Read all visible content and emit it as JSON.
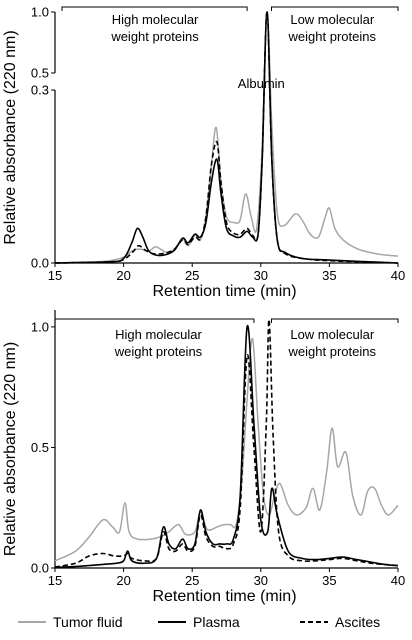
{
  "chart_data": [
    {
      "type": "line",
      "xlabel": "Retention time (min)",
      "ylabel": "Relative absorbance (220 nm)",
      "xlim": [
        15,
        40
      ],
      "xticks": [
        "15",
        "20",
        "25",
        "30",
        "35",
        "40"
      ],
      "y_axis_break": true,
      "ylim_lower": [
        0,
        0.3
      ],
      "ylim_upper": [
        0.5,
        1.0
      ],
      "yticks": [
        "0.0",
        "0.3",
        "0.5",
        "1.0"
      ],
      "annotations": [
        {
          "text_lines": [
            "High molecular",
            "weight proteins"
          ],
          "range": [
            15,
            29
          ]
        },
        {
          "text_lines": [
            "Low molecular",
            "weight proteins"
          ],
          "range": [
            31,
            40
          ]
        },
        {
          "text_lines": [
            "Albumin"
          ],
          "at": 30.4
        }
      ],
      "series": [
        {
          "name": "Tumor fluid",
          "color": "#a6a6a6",
          "dash": "solid",
          "points": [
            [
              15,
              0
            ],
            [
              18,
              0.002
            ],
            [
              19,
              0.004
            ],
            [
              20,
              0.01
            ],
            [
              20.7,
              0.022
            ],
            [
              21.3,
              0.024
            ],
            [
              21.8,
              0.02
            ],
            [
              22.3,
              0.028
            ],
            [
              22.7,
              0.024
            ],
            [
              23.2,
              0.018
            ],
            [
              23.7,
              0.024
            ],
            [
              24.3,
              0.042
            ],
            [
              24.7,
              0.03
            ],
            [
              25.2,
              0.048
            ],
            [
              25.6,
              0.04
            ],
            [
              26,
              0.08
            ],
            [
              26.4,
              0.17
            ],
            [
              26.75,
              0.235
            ],
            [
              27.1,
              0.14
            ],
            [
              27.5,
              0.08
            ],
            [
              28.1,
              0.07
            ],
            [
              28.5,
              0.075
            ],
            [
              28.9,
              0.12
            ],
            [
              29.3,
              0.08
            ],
            [
              29.7,
              0.06
            ],
            [
              30.1,
              0.2
            ],
            [
              30.45,
              1.0
            ],
            [
              30.8,
              0.24
            ],
            [
              31.2,
              0.085
            ],
            [
              31.7,
              0.065
            ],
            [
              32.5,
              0.085
            ],
            [
              33,
              0.075
            ],
            [
              33.6,
              0.05
            ],
            [
              34.2,
              0.045
            ],
            [
              34.7,
              0.08
            ],
            [
              35,
              0.095
            ],
            [
              35.4,
              0.06
            ],
            [
              36,
              0.04
            ],
            [
              37,
              0.025
            ],
            [
              38,
              0.018
            ],
            [
              39,
              0.014
            ],
            [
              40,
              0.012
            ]
          ]
        },
        {
          "name": "Plasma",
          "color": "#000000",
          "dash": "solid",
          "points": [
            [
              15,
              0
            ],
            [
              19,
              0.002
            ],
            [
              20,
              0.008
            ],
            [
              20.6,
              0.035
            ],
            [
              21,
              0.06
            ],
            [
              21.4,
              0.045
            ],
            [
              21.8,
              0.022
            ],
            [
              22.3,
              0.014
            ],
            [
              23,
              0.014
            ],
            [
              23.7,
              0.022
            ],
            [
              24.3,
              0.043
            ],
            [
              24.7,
              0.035
            ],
            [
              25.2,
              0.05
            ],
            [
              25.6,
              0.045
            ],
            [
              26,
              0.07
            ],
            [
              26.4,
              0.14
            ],
            [
              26.8,
              0.18
            ],
            [
              27.1,
              0.12
            ],
            [
              27.5,
              0.06
            ],
            [
              28,
              0.047
            ],
            [
              28.5,
              0.045
            ],
            [
              29,
              0.055
            ],
            [
              29.4,
              0.045
            ],
            [
              29.8,
              0.05
            ],
            [
              30.1,
              0.18
            ],
            [
              30.45,
              1.0
            ],
            [
              30.8,
              0.18
            ],
            [
              31.2,
              0.04
            ],
            [
              31.8,
              0.018
            ],
            [
              33,
              0.008
            ],
            [
              35,
              0.005
            ],
            [
              40,
              0
            ]
          ]
        },
        {
          "name": "Ascites",
          "color": "#000000",
          "dash": "5,3",
          "points": [
            [
              15,
              0
            ],
            [
              19,
              0.002
            ],
            [
              20,
              0.006
            ],
            [
              20.7,
              0.02
            ],
            [
              21.1,
              0.03
            ],
            [
              21.6,
              0.022
            ],
            [
              22.2,
              0.016
            ],
            [
              23,
              0.017
            ],
            [
              23.7,
              0.024
            ],
            [
              24.3,
              0.04
            ],
            [
              24.7,
              0.032
            ],
            [
              25.2,
              0.045
            ],
            [
              25.6,
              0.042
            ],
            [
              26,
              0.08
            ],
            [
              26.4,
              0.17
            ],
            [
              26.8,
              0.21
            ],
            [
              27.1,
              0.14
            ],
            [
              27.5,
              0.07
            ],
            [
              28,
              0.052
            ],
            [
              28.5,
              0.05
            ],
            [
              29,
              0.06
            ],
            [
              29.4,
              0.048
            ],
            [
              29.8,
              0.05
            ],
            [
              30.1,
              0.18
            ],
            [
              30.45,
              1.0
            ],
            [
              30.8,
              0.18
            ],
            [
              31.2,
              0.04
            ],
            [
              31.8,
              0.016
            ],
            [
              33,
              0.008
            ],
            [
              35,
              0.004
            ],
            [
              40,
              0
            ]
          ]
        }
      ]
    },
    {
      "type": "line",
      "xlabel": "Retention time (min)",
      "ylabel": "Relative absorbance (220 nm)",
      "xlim": [
        15,
        40
      ],
      "ylim": [
        0,
        1.07
      ],
      "xticks": [
        "15",
        "20",
        "25",
        "30",
        "35",
        "40"
      ],
      "yticks": [
        "0.0",
        "0.5",
        "1.0"
      ],
      "annotations": [
        {
          "text_lines": [
            "High molecular",
            "weight proteins"
          ],
          "range": [
            15,
            29.5
          ]
        },
        {
          "text_lines": [
            "Low molecular",
            "weight proteins"
          ],
          "range": [
            31,
            40
          ]
        }
      ],
      "series": [
        {
          "name": "Tumor fluid",
          "color": "#a6a6a6",
          "dash": "solid",
          "points": [
            [
              15,
              0.03
            ],
            [
              16.5,
              0.07
            ],
            [
              17.5,
              0.13
            ],
            [
              18.5,
              0.2
            ],
            [
              19.2,
              0.17
            ],
            [
              19.7,
              0.15
            ],
            [
              20.1,
              0.27
            ],
            [
              20.4,
              0.15
            ],
            [
              21,
              0.12
            ],
            [
              22,
              0.12
            ],
            [
              22.7,
              0.13
            ],
            [
              23.3,
              0.15
            ],
            [
              24,
              0.18
            ],
            [
              24.5,
              0.14
            ],
            [
              25.2,
              0.15
            ],
            [
              25.6,
              0.23
            ],
            [
              26.1,
              0.16
            ],
            [
              26.8,
              0.17
            ],
            [
              27.3,
              0.18
            ],
            [
              27.8,
              0.18
            ],
            [
              28.2,
              0.18
            ],
            [
              28.6,
              0.35
            ],
            [
              29,
              0.7
            ],
            [
              29.4,
              0.95
            ],
            [
              29.8,
              0.6
            ],
            [
              30.2,
              0.3
            ],
            [
              30.6,
              0.22
            ],
            [
              31,
              0.3
            ],
            [
              31.4,
              0.35
            ],
            [
              32,
              0.26
            ],
            [
              32.6,
              0.22
            ],
            [
              33.3,
              0.25
            ],
            [
              33.8,
              0.33
            ],
            [
              34.3,
              0.24
            ],
            [
              34.8,
              0.4
            ],
            [
              35.2,
              0.58
            ],
            [
              35.6,
              0.42
            ],
            [
              36.2,
              0.48
            ],
            [
              36.7,
              0.3
            ],
            [
              37.3,
              0.22
            ],
            [
              37.8,
              0.32
            ],
            [
              38.3,
              0.33
            ],
            [
              38.8,
              0.26
            ],
            [
              39.3,
              0.22
            ],
            [
              40,
              0.26
            ]
          ]
        },
        {
          "name": "Plasma",
          "color": "#000000",
          "dash": "solid",
          "points": [
            [
              15,
              0.002
            ],
            [
              17,
              0.008
            ],
            [
              18.5,
              0.015
            ],
            [
              19.5,
              0.02
            ],
            [
              20,
              0.03
            ],
            [
              20.3,
              0.07
            ],
            [
              20.6,
              0.03
            ],
            [
              21.5,
              0.02
            ],
            [
              22.4,
              0.04
            ],
            [
              22.9,
              0.17
            ],
            [
              23.3,
              0.1
            ],
            [
              23.8,
              0.08
            ],
            [
              24.3,
              0.12
            ],
            [
              24.7,
              0.08
            ],
            [
              25.2,
              0.1
            ],
            [
              25.6,
              0.24
            ],
            [
              26,
              0.15
            ],
            [
              26.5,
              0.1
            ],
            [
              27,
              0.1
            ],
            [
              27.5,
              0.1
            ],
            [
              28,
              0.12
            ],
            [
              28.5,
              0.3
            ],
            [
              29,
              1.0
            ],
            [
              29.5,
              0.6
            ],
            [
              30,
              0.2
            ],
            [
              30.5,
              0.15
            ],
            [
              30.8,
              0.33
            ],
            [
              31.2,
              0.22
            ],
            [
              32,
              0.07
            ],
            [
              33,
              0.04
            ],
            [
              34,
              0.035
            ],
            [
              35,
              0.04
            ],
            [
              36,
              0.045
            ],
            [
              37,
              0.035
            ],
            [
              38,
              0.025
            ],
            [
              39,
              0.015
            ],
            [
              40,
              0.01
            ]
          ]
        },
        {
          "name": "Ascites",
          "color": "#000000",
          "dash": "5,3",
          "points": [
            [
              15,
              0.004
            ],
            [
              16.5,
              0.02
            ],
            [
              17.5,
              0.05
            ],
            [
              18.5,
              0.06
            ],
            [
              19.3,
              0.05
            ],
            [
              20,
              0.05
            ],
            [
              20.3,
              0.06
            ],
            [
              20.6,
              0.04
            ],
            [
              21.5,
              0.03
            ],
            [
              22.4,
              0.04
            ],
            [
              22.9,
              0.15
            ],
            [
              23.3,
              0.08
            ],
            [
              23.8,
              0.07
            ],
            [
              24.3,
              0.1
            ],
            [
              24.7,
              0.07
            ],
            [
              25.2,
              0.09
            ],
            [
              25.6,
              0.22
            ],
            [
              26,
              0.13
            ],
            [
              26.5,
              0.09
            ],
            [
              27,
              0.09
            ],
            [
              27.5,
              0.08
            ],
            [
              28,
              0.1
            ],
            [
              28.5,
              0.25
            ],
            [
              29,
              0.88
            ],
            [
              29.5,
              0.5
            ],
            [
              30,
              0.15
            ],
            [
              30.4,
              0.6
            ],
            [
              30.6,
              1.03
            ],
            [
              30.9,
              0.55
            ],
            [
              31.3,
              0.15
            ],
            [
              32,
              0.05
            ],
            [
              33,
              0.03
            ],
            [
              34,
              0.03
            ],
            [
              35,
              0.035
            ],
            [
              36,
              0.04
            ],
            [
              37,
              0.03
            ],
            [
              38,
              0.02
            ],
            [
              39,
              0.015
            ],
            [
              40,
              0.01
            ]
          ]
        }
      ]
    }
  ],
  "legend": {
    "items": [
      {
        "label": "Tumor fluid",
        "color": "#a6a6a6",
        "dash": "solid"
      },
      {
        "label": "Plasma",
        "color": "#000000",
        "dash": "solid"
      },
      {
        "label": "Ascites",
        "color": "#000000",
        "dash": "5,3"
      }
    ]
  }
}
